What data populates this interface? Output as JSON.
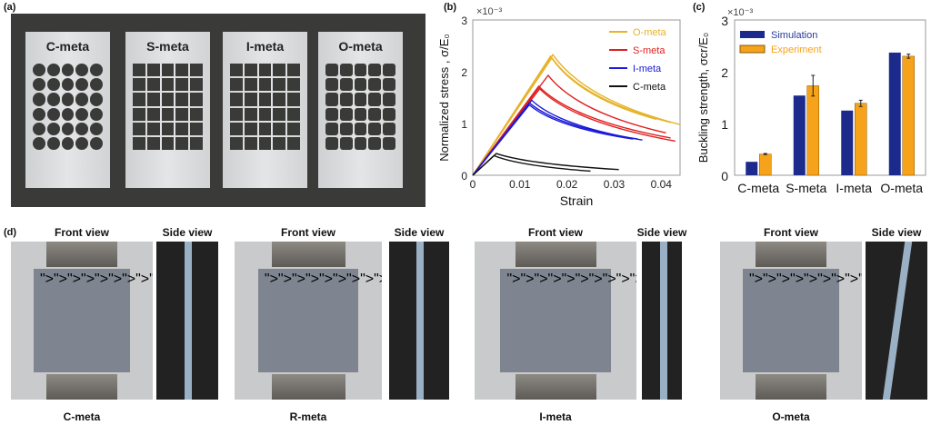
{
  "panels": {
    "a": "(a)",
    "b": "(b)",
    "c": "(c)",
    "d": "(d)"
  },
  "photo_a": {
    "plates": [
      "C-meta",
      "S-meta",
      "I-meta",
      "O-meta"
    ]
  },
  "panel_d": {
    "groups": [
      {
        "front": "Front view",
        "side": "Side view",
        "caption": "C-meta"
      },
      {
        "front": "Front view",
        "side": "Side view",
        "caption": "R-meta"
      },
      {
        "front": "Front view",
        "side": "Side view",
        "caption": "I-meta"
      },
      {
        "front": "Front view",
        "side": "Side view",
        "caption": "O-meta"
      }
    ]
  },
  "chart_data": [
    {
      "type": "line",
      "xlabel": "Strain",
      "ylabel": "Normalized stress , σ/E₀",
      "y_multiplier": "×10⁻³",
      "xlim": [
        0,
        0.044
      ],
      "ylim": [
        0,
        3
      ],
      "xticks": [
        "0",
        "0.01",
        "0.02",
        "0.03",
        "0.04"
      ],
      "yticks": [
        "0",
        "1",
        "2",
        "3"
      ],
      "legend": "top-right",
      "series": [
        {
          "name": "O-meta",
          "color": "#e6b32a",
          "curves": [
            [
              [
                0,
                0
              ],
              [
                0.0165,
                2.3
              ],
              [
                0.039,
                1.08
              ]
            ],
            [
              [
                0,
                0
              ],
              [
                0.017,
                2.33
              ],
              [
                0.044,
                0.98
              ]
            ],
            [
              [
                0,
                0
              ],
              [
                0.0168,
                2.27
              ],
              [
                0.042,
                1.02
              ]
            ]
          ]
        },
        {
          "name": "S-meta",
          "color": "#e02020",
          "curves": [
            [
              [
                0,
                0
              ],
              [
                0.016,
                1.93
              ],
              [
                0.041,
                0.82
              ]
            ],
            [
              [
                0,
                0
              ],
              [
                0.014,
                1.72
              ],
              [
                0.042,
                0.72
              ]
            ],
            [
              [
                0,
                0
              ],
              [
                0.0142,
                1.67
              ],
              [
                0.043,
                0.66
              ]
            ]
          ]
        },
        {
          "name": "I-meta",
          "color": "#1a1ad8",
          "curves": [
            [
              [
                0,
                0
              ],
              [
                0.0125,
                1.45
              ],
              [
                0.036,
                0.68
              ]
            ],
            [
              [
                0,
                0
              ],
              [
                0.012,
                1.4
              ],
              [
                0.035,
                0.7
              ]
            ],
            [
              [
                0,
                0
              ],
              [
                0.012,
                1.36
              ],
              [
                0.034,
                0.7
              ]
            ]
          ]
        },
        {
          "name": "C-meta",
          "color": "#111111",
          "curves": [
            [
              [
                0,
                0
              ],
              [
                0.005,
                0.42
              ],
              [
                0.031,
                0.11
              ]
            ],
            [
              [
                0,
                0
              ],
              [
                0.0045,
                0.38
              ],
              [
                0.025,
                0.08
              ]
            ]
          ]
        }
      ]
    },
    {
      "type": "bar",
      "ylabel": "Buckling strength, σcr/E₀",
      "y_multiplier": "×10⁻³",
      "ylim": [
        0,
        3
      ],
      "yticks": [
        "0",
        "1",
        "2",
        "3"
      ],
      "legend": "top-left",
      "categories": [
        "C-meta",
        "S-meta",
        "I-meta",
        "O-meta"
      ],
      "series": [
        {
          "name": "Simulation",
          "color": "#1c2a8c",
          "values": [
            0.26,
            1.54,
            1.25,
            2.37
          ]
        },
        {
          "name": "Experiment",
          "color": "#f7a21b",
          "values": [
            0.41,
            1.73,
            1.39,
            2.3
          ],
          "errors": [
            0.01,
            0.2,
            0.06,
            0.04
          ]
        }
      ]
    }
  ]
}
